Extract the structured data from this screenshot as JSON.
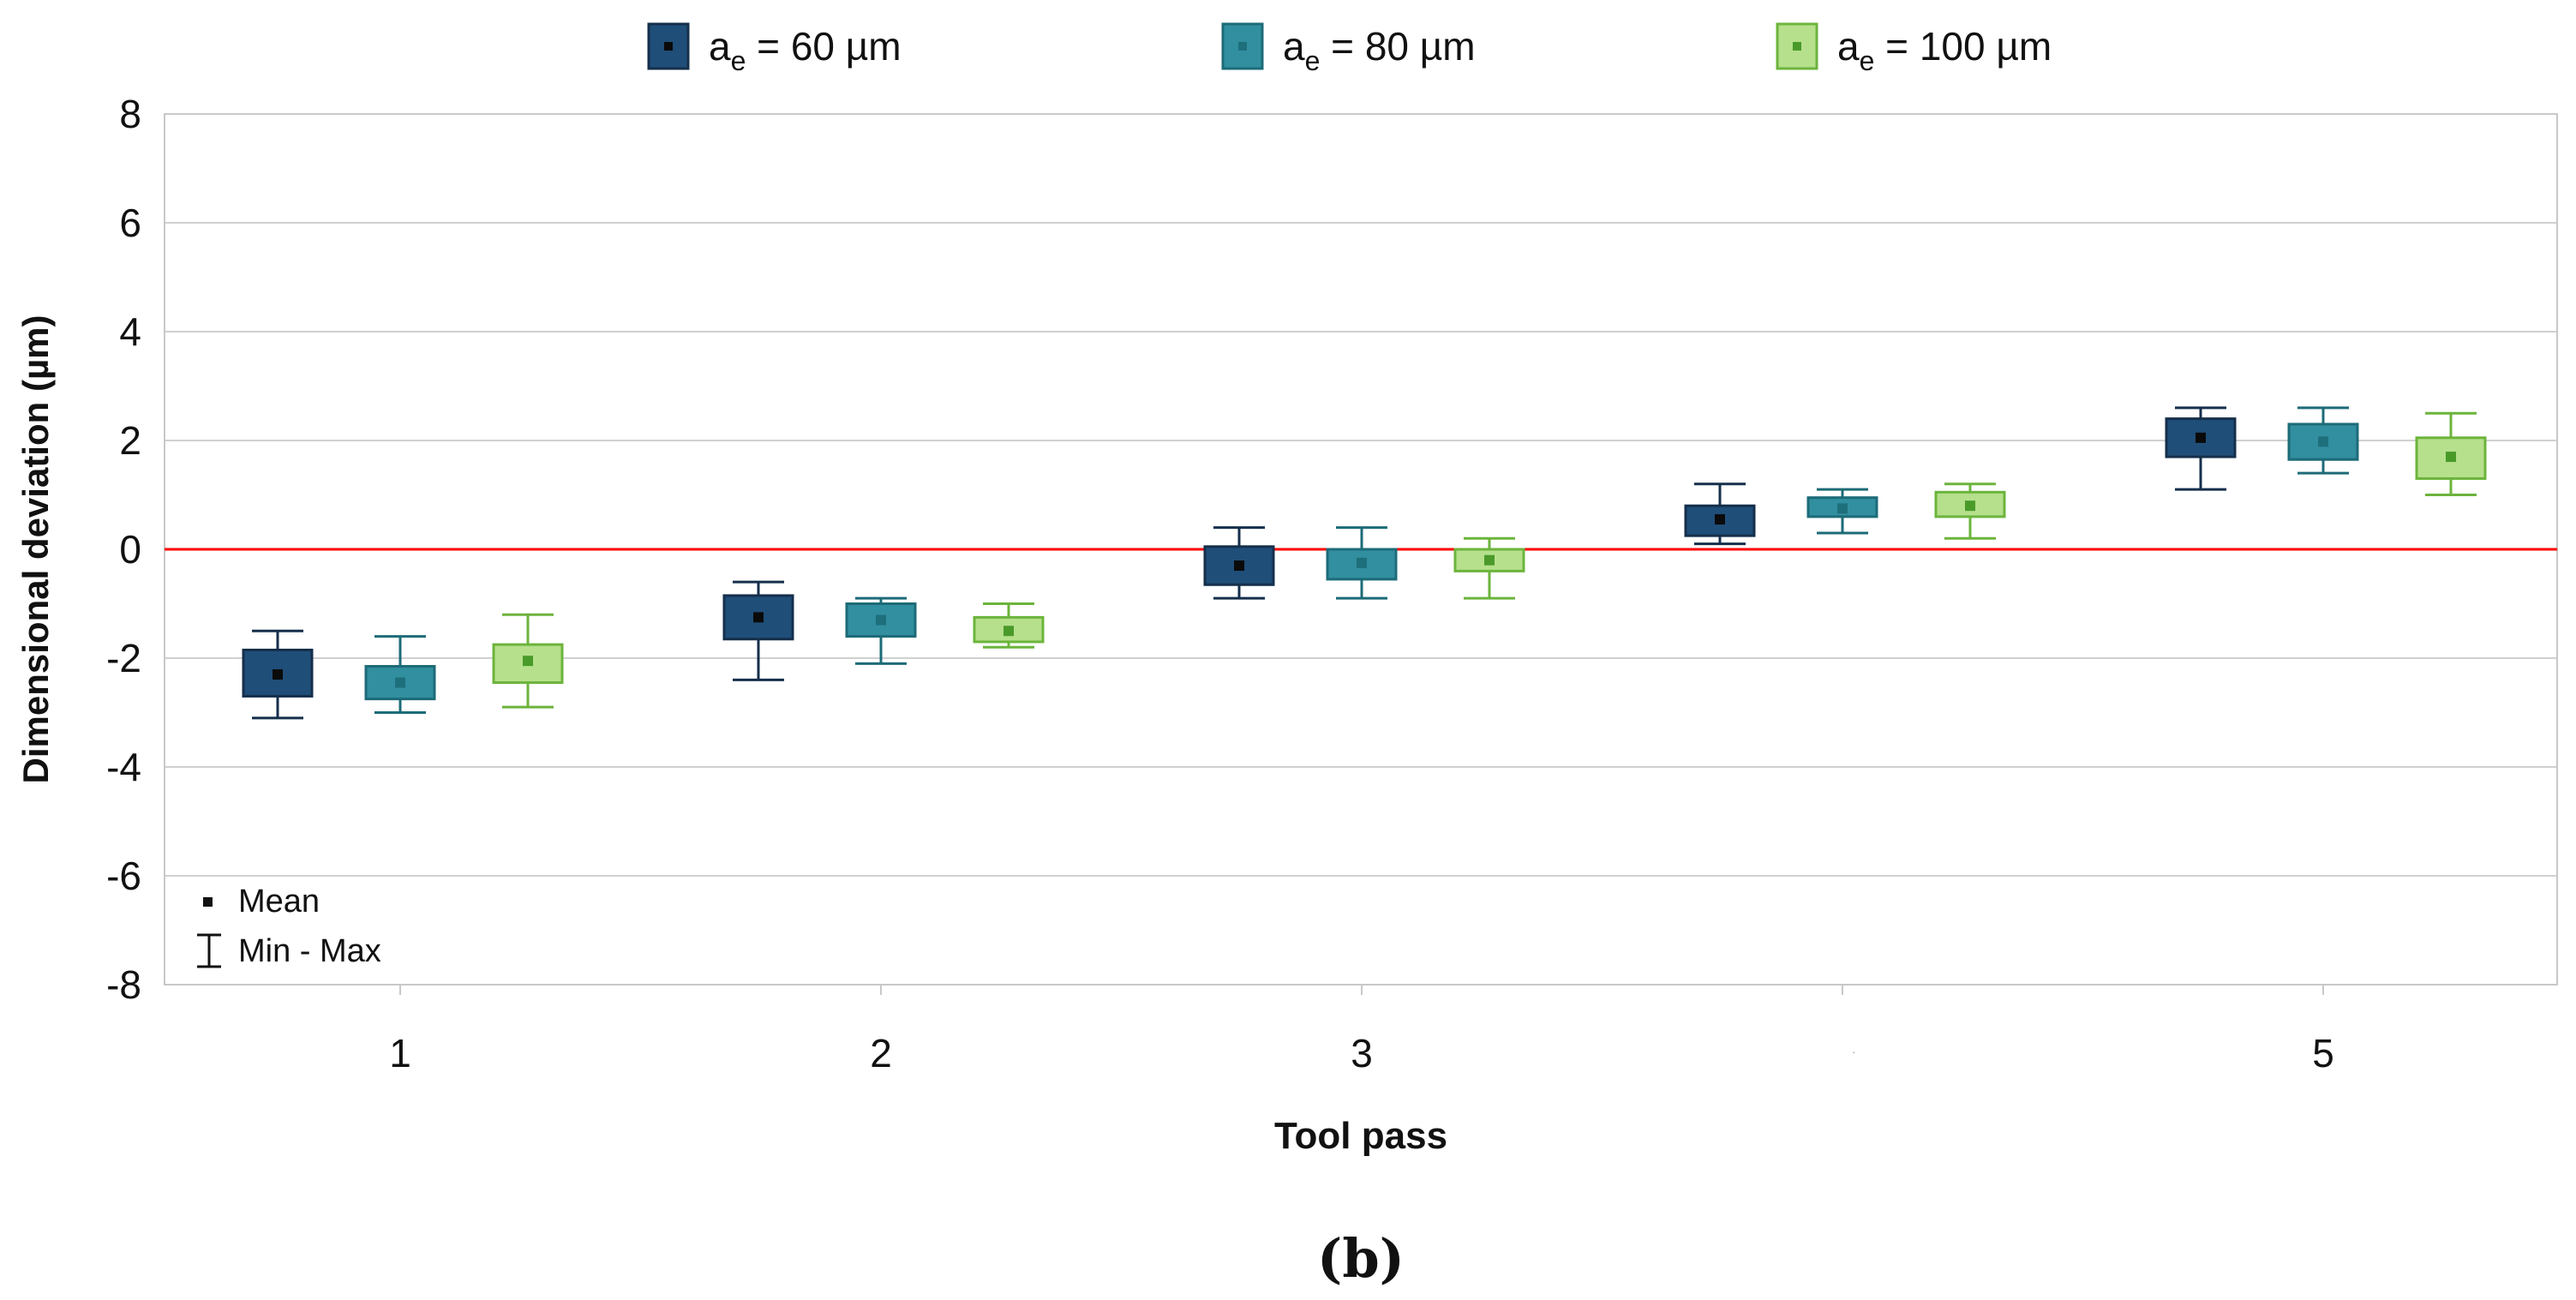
{
  "chart_data": {
    "type": "box",
    "title": "",
    "xlabel": "Tool pass",
    "ylabel": "Dimensional deviation (µm)",
    "ylim": [
      -8,
      8
    ],
    "yticks": [
      -8,
      -6,
      -4,
      -2,
      0,
      2,
      4,
      6,
      8
    ],
    "categories": [
      "1",
      "2",
      "3",
      "",
      "5"
    ],
    "reference_line": {
      "y": 0,
      "color": "#ff0000"
    },
    "grid": true,
    "series": [
      {
        "name_base": "a",
        "name_sub": "e",
        "name_rest": " = 60 µm",
        "fill": "#1f4e79",
        "stroke": "#152f4b",
        "mean_color": "#0a0a0a",
        "boxes": [
          {
            "min": -3.1,
            "q1": -2.7,
            "q3": -1.85,
            "max": -1.5,
            "mean": -2.3
          },
          {
            "min": -2.4,
            "q1": -1.65,
            "q3": -0.85,
            "max": -0.6,
            "mean": -1.25
          },
          {
            "min": -0.9,
            "q1": -0.65,
            "q3": 0.05,
            "max": 0.4,
            "mean": -0.3
          },
          {
            "min": 0.1,
            "q1": 0.25,
            "q3": 0.8,
            "max": 1.2,
            "mean": 0.55
          },
          {
            "min": 1.1,
            "q1": 1.7,
            "q3": 2.4,
            "max": 2.6,
            "mean": 2.05
          }
        ]
      },
      {
        "name_base": "a",
        "name_sub": "e",
        "name_rest": " = 80 µm",
        "fill": "#318f9f",
        "stroke": "#1d6b78",
        "mean_color": "#1e6f7c",
        "boxes": [
          {
            "min": -3.0,
            "q1": -2.75,
            "q3": -2.15,
            "max": -1.6,
            "mean": -2.45
          },
          {
            "min": -2.1,
            "q1": -1.6,
            "q3": -1.0,
            "max": -0.9,
            "mean": -1.3
          },
          {
            "min": -0.9,
            "q1": -0.55,
            "q3": 0.0,
            "max": 0.4,
            "mean": -0.25
          },
          {
            "min": 0.3,
            "q1": 0.6,
            "q3": 0.95,
            "max": 1.1,
            "mean": 0.75
          },
          {
            "min": 1.4,
            "q1": 1.65,
            "q3": 2.3,
            "max": 2.6,
            "mean": 1.98
          }
        ]
      },
      {
        "name_base": "a",
        "name_sub": "e",
        "name_rest": " = 100 µm",
        "fill": "#b6e08c",
        "stroke": "#6cb43c",
        "mean_color": "#4a9a2a",
        "boxes": [
          {
            "min": -2.9,
            "q1": -2.45,
            "q3": -1.75,
            "max": -1.2,
            "mean": -2.05
          },
          {
            "min": -1.8,
            "q1": -1.7,
            "q3": -1.25,
            "max": -1.0,
            "mean": -1.5
          },
          {
            "min": -0.9,
            "q1": -0.4,
            "q3": 0.0,
            "max": 0.2,
            "mean": -0.2
          },
          {
            "min": 0.2,
            "q1": 0.6,
            "q3": 1.05,
            "max": 1.2,
            "mean": 0.8
          },
          {
            "min": 1.0,
            "q1": 1.3,
            "q3": 2.05,
            "max": 2.5,
            "mean": 1.7
          }
        ]
      }
    ],
    "inset_legend": {
      "mean_label": "Mean",
      "minmax_label": "Min - Max"
    },
    "stray_mark": "·"
  },
  "caption": "(b)"
}
